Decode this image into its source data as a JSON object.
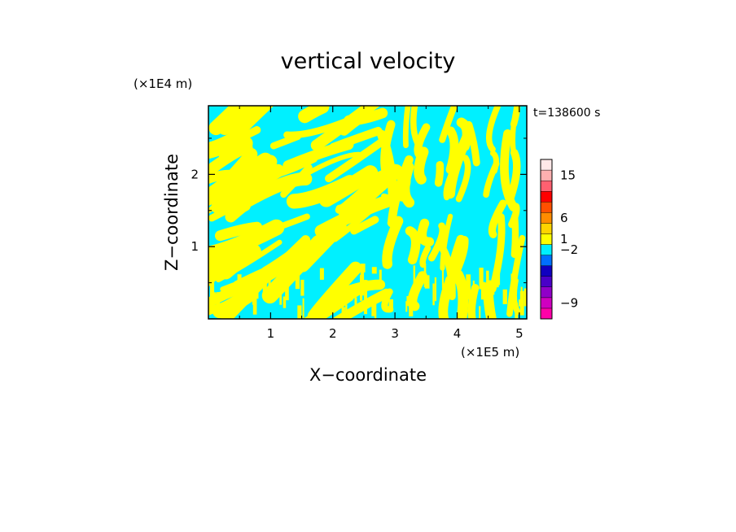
{
  "chart_data": {
    "type": "heatmap",
    "title": "vertical velocity",
    "xlabel": "X−coordinate",
    "ylabel": "Z−coordinate",
    "x_unit": "(×1E5 m)",
    "y_unit": "(×1E4 m)",
    "time_label": "t=138600 s",
    "xlim": [
      0,
      5.12
    ],
    "ylim": [
      0,
      2.95
    ],
    "x_ticks": [
      1,
      2,
      3,
      4,
      5
    ],
    "x_tick_labels": [
      "1",
      "2",
      "3",
      "4",
      "5"
    ],
    "y_ticks": [
      1,
      2
    ],
    "y_tick_labels": [
      "1",
      "2"
    ],
    "grid": false,
    "field_colors": {
      "positive": "#ffff00",
      "negative": "#00f0ff"
    },
    "colorbar": {
      "levels": [
        {
          "color": "#ff00a8"
        },
        {
          "color": "#d000c0"
        },
        {
          "color": "#9000c8"
        },
        {
          "color": "#4a00c8"
        },
        {
          "color": "#1000c0"
        },
        {
          "color": "#0070ff"
        },
        {
          "color": "#00f0ff"
        },
        {
          "color": "#ffff00"
        },
        {
          "color": "#ffd400"
        },
        {
          "color": "#ff8c00"
        },
        {
          "color": "#ff5000"
        },
        {
          "color": "#ff0000"
        },
        {
          "color": "#ff6070"
        },
        {
          "color": "#ffb0b0"
        },
        {
          "color": "#ffe8e8"
        }
      ],
      "labels": [
        {
          "text": "−9",
          "level_index": 1
        },
        {
          "text": "−2",
          "level_index": 6
        },
        {
          "text": "1",
          "level_index": 7
        },
        {
          "text": "6",
          "level_index": 9
        },
        {
          "text": "15",
          "level_index": 13
        }
      ]
    }
  }
}
